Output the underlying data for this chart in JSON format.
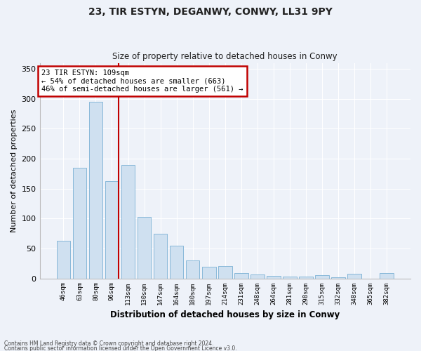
{
  "title1": "23, TIR ESTYN, DEGANWY, CONWY, LL31 9PY",
  "title2": "Size of property relative to detached houses in Conwy",
  "xlabel": "Distribution of detached houses by size in Conwy",
  "ylabel": "Number of detached properties",
  "categories": [
    "46sqm",
    "63sqm",
    "80sqm",
    "96sqm",
    "113sqm",
    "130sqm",
    "147sqm",
    "164sqm",
    "180sqm",
    "197sqm",
    "214sqm",
    "231sqm",
    "248sqm",
    "264sqm",
    "281sqm",
    "298sqm",
    "315sqm",
    "332sqm",
    "348sqm",
    "365sqm",
    "382sqm"
  ],
  "values": [
    63,
    185,
    295,
    162,
    190,
    103,
    75,
    55,
    30,
    20,
    21,
    9,
    6,
    4,
    3,
    3,
    5,
    2,
    8,
    0,
    9
  ],
  "bar_color": "#cfe0f0",
  "bar_edge_color": "#7ab0d4",
  "annotation_line1": "23 TIR ESTYN: 109sqm",
  "annotation_line2": "← 54% of detached houses are smaller (663)",
  "annotation_line3": "46% of semi-detached houses are larger (561) →",
  "vline_color": "#c00000",
  "annotation_box_edge": "#c00000",
  "vline_x": 3.43,
  "ylim": [
    0,
    360
  ],
  "yticks": [
    0,
    50,
    100,
    150,
    200,
    250,
    300,
    350
  ],
  "footer1": "Contains HM Land Registry data © Crown copyright and database right 2024.",
  "footer2": "Contains public sector information licensed under the Open Government Licence v3.0.",
  "bg_color": "#eef2f9",
  "plot_bg_color": "#eef2f9",
  "grid_color": "#ffffff"
}
